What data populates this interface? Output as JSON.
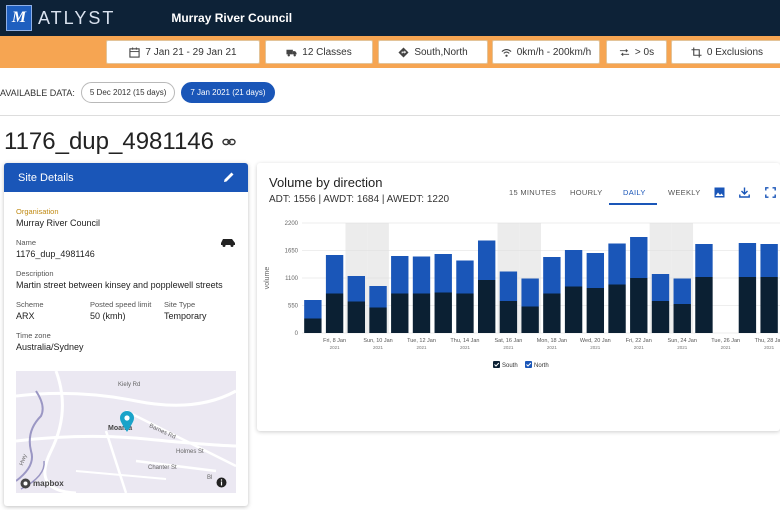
{
  "header": {
    "logo_letter": "M",
    "logo_text": "ATLYST",
    "org_title": "Murray River Council"
  },
  "filters": {
    "date_range": "7 Jan 21 - 29 Jan 21",
    "classes": "12 Classes",
    "direction": "South,North",
    "speed": "0km/h - 200km/h",
    "gap": "> 0s",
    "exclusions": "0 Exclusions"
  },
  "available": {
    "label": "AVAILABLE DATA:",
    "options": [
      "5 Dec 2012 (15 days)",
      "7 Jan 2021 (21 days)"
    ],
    "selected_index": 1
  },
  "site": {
    "title": "1176_dup_4981146"
  },
  "details": {
    "header": "Site Details",
    "organisation_label": "Organisation",
    "organisation": "Murray River Council",
    "name_label": "Name",
    "name": "1176_dup_4981146",
    "description_label": "Description",
    "description": "Martin street between kinsey and popplewell streets",
    "scheme_label": "Scheme",
    "scheme": "ARX",
    "speed_label": "Posted speed limit",
    "speed": "50 (kmh)",
    "type_label": "Site Type",
    "type": "Temporary",
    "timezone_label": "Time zone",
    "timezone": "Australia/Sydney"
  },
  "map": {
    "labels": [
      "Kiely Rd",
      "Moama",
      "Barnes Rd",
      "Holmes St",
      "Chanter St",
      "Bl",
      "Hwy"
    ],
    "attribution": "mapbox"
  },
  "panel": {
    "title": "Volume by direction",
    "subtitle": "ADT: 1556 | AWDT: 1684 | AWEDT: 1220",
    "tabs": [
      "15 MINUTES",
      "HOURLY",
      "DAILY",
      "WEEKLY"
    ],
    "active_tab": "DAILY"
  },
  "chart_data": {
    "type": "bar",
    "stacked": true,
    "ylabel": "volume",
    "ylim": [
      0,
      2200
    ],
    "yticks": [
      0,
      550,
      1100,
      1650,
      2200
    ],
    "categories": [
      "7 Jan",
      "8 Jan",
      "9 Jan",
      "10 Jan",
      "11 Jan",
      "12 Jan",
      "13 Jan",
      "14 Jan",
      "15 Jan",
      "16 Jan",
      "17 Jan",
      "18 Jan",
      "19 Jan",
      "20 Jan",
      "21 Jan",
      "22 Jan",
      "23 Jan",
      "24 Jan",
      "25 Jan",
      "26 Jan",
      "27 Jan",
      "28 Jan"
    ],
    "tick_labels": [
      [
        "Fri, 8 Jan",
        "2021"
      ],
      [
        "Sun, 10 Jan",
        "2021"
      ],
      [
        "Tue, 12 Jan",
        "2021"
      ],
      [
        "Thu, 14 Jan",
        "2021"
      ],
      [
        "Sat, 16 Jan",
        "2021"
      ],
      [
        "Mon, 18 Jan",
        "2021"
      ],
      [
        "Wed, 20 Jan",
        "2021"
      ],
      [
        "Fri, 22 Jan",
        "2021"
      ],
      [
        "Sun, 24 Jan",
        "2021"
      ],
      [
        "Tue, 26 Jan",
        "2021"
      ],
      [
        "Thu, 28 Jan",
        "2021"
      ]
    ],
    "weekend_categories": [
      "9 Jan",
      "10 Jan",
      "16 Jan",
      "17 Jan",
      "23 Jan",
      "24 Jan"
    ],
    "series": [
      {
        "name": "South",
        "color": "#0b2033",
        "values": [
          290,
          790,
          630,
          510,
          790,
          790,
          810,
          790,
          1060,
          640,
          530,
          790,
          930,
          900,
          970,
          1100,
          640,
          580,
          1120,
          0,
          1120,
          1120
        ]
      },
      {
        "name": "North",
        "color": "#1a56b8",
        "values": [
          370,
          770,
          510,
          430,
          750,
          740,
          770,
          660,
          790,
          590,
          560,
          730,
          730,
          700,
          820,
          820,
          540,
          510,
          660,
          0,
          680,
          660
        ]
      }
    ]
  }
}
